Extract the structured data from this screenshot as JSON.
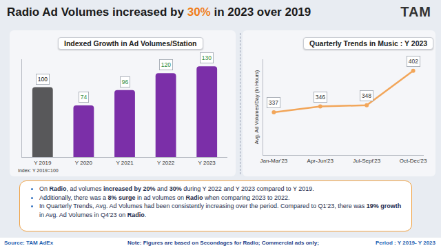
{
  "title_parts": [
    "Radio Ad Volumes increased by ",
    "30%",
    " in 2023 over 2019"
  ],
  "logo": "TAM",
  "chart_data": [
    {
      "type": "bar",
      "title": "Indexed Growth in Ad Volumes/Station",
      "categories": [
        "Y 2019",
        "Y 2020",
        "Y 2021",
        "Y 2022",
        "Y 2023"
      ],
      "values": [
        100,
        74,
        96,
        120,
        130
      ],
      "colors": [
        "#58585a",
        "#7b2fa8",
        "#7b2fa8",
        "#7b2fa8",
        "#7b2fa8"
      ],
      "ylim": [
        0,
        140
      ],
      "data_labels": true,
      "tick_labels": "x",
      "grid": false,
      "note": "Index: Y 2019=100"
    },
    {
      "type": "line",
      "title": "Quarterly Trends in Music : Y 2023",
      "categories": [
        "Jan-Mar'23",
        "Apr-Jun'23",
        "Jul-Sept'23",
        "Oct-Dec'23"
      ],
      "values": [
        337,
        346,
        348,
        402
      ],
      "color": "#f2a65a",
      "marker": "circle",
      "ylim": [
        270,
        420
      ],
      "y_label": "Avg. Ad Volumes/Day (In Hours)",
      "data_labels": true,
      "tick_labels": "x",
      "grid": false
    }
  ],
  "bullets": [
    [
      "On ",
      "Radio",
      ", ad volumes ",
      "increased by 20%",
      " and ",
      "30%",
      " during Y 2022 and Y 2023 compared to Y 2019."
    ],
    [
      "Additionally, there was a ",
      "8% surge",
      " in ad volumes on ",
      "Radio",
      " when comparing 2023 to 2022."
    ],
    [
      "In Quarterly Trends, Avg. Ad Volumes had been consistently increasing over the period. Compared to Q1'23, there was ",
      "19% growth",
      " in Avg. Ad Volumes in Q4'23 on ",
      "Radio",
      "."
    ]
  ],
  "footer": {
    "source": "Source: TAM AdEx",
    "note": "Note: Figures are based on Secondages for Radio; Commercial ads only;",
    "period": "Period : Y 2019- Y 2023"
  }
}
